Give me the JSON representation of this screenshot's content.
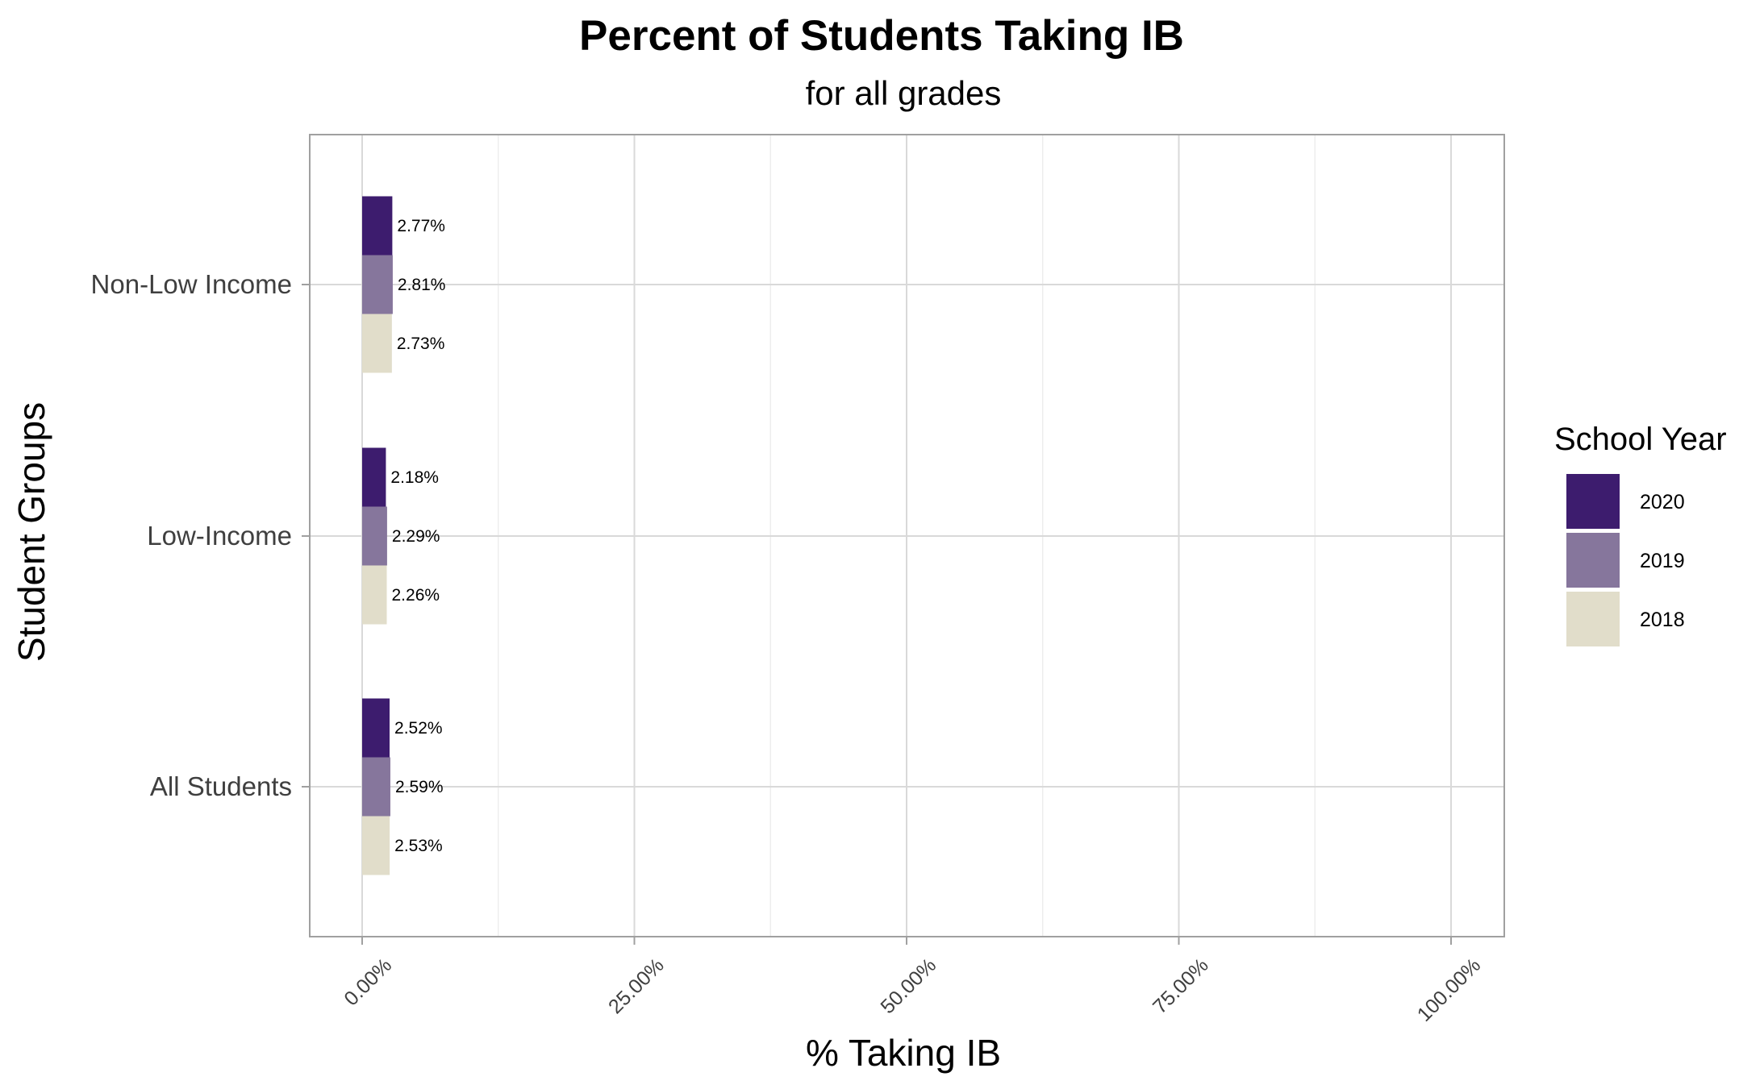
{
  "chart_data": {
    "type": "bar",
    "orientation": "horizontal",
    "title": "Percent of Students Taking IB",
    "subtitle": "for all grades",
    "xlabel": "% Taking IB",
    "ylabel": "Student Groups",
    "xlim": [
      0,
      100
    ],
    "x_ticks": [
      0,
      25,
      50,
      75,
      100
    ],
    "x_tick_labels": [
      "0.00%",
      "25.00%",
      "50.00%",
      "75.00%",
      "100.00%"
    ],
    "categories": [
      "Non-Low Income",
      "Low-Income",
      "All Students"
    ],
    "series": [
      {
        "name": "2020",
        "color": "#3d1c6e",
        "values": [
          2.77,
          2.18,
          2.52
        ],
        "labels": [
          "2.77%",
          "2.18%",
          "2.52%"
        ]
      },
      {
        "name": "2019",
        "color": "#86769c",
        "values": [
          2.81,
          2.29,
          2.59
        ],
        "labels": [
          "2.81%",
          "2.29%",
          "2.59%"
        ]
      },
      {
        "name": "2018",
        "color": "#e1ddca",
        "values": [
          2.73,
          2.26,
          2.53
        ],
        "labels": [
          "2.73%",
          "2.26%",
          "2.53%"
        ]
      }
    ],
    "legend": {
      "title": "School Year",
      "position": "right"
    },
    "grid": true
  }
}
